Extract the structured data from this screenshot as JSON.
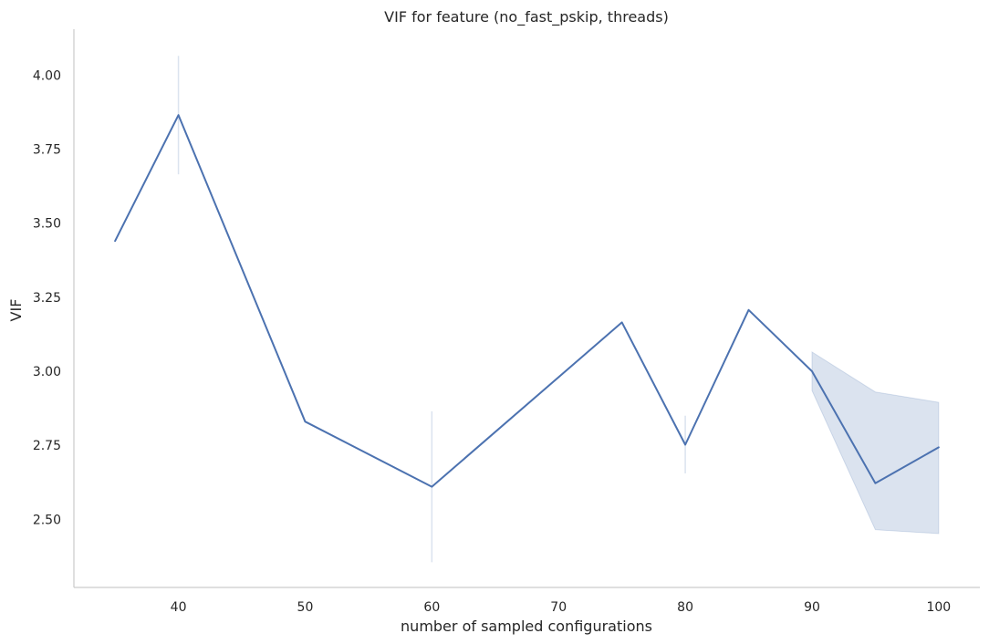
{
  "chart_data": {
    "type": "line",
    "title": "VIF for feature (no_fast_pskip, threads)",
    "xlabel": "number of sampled configurations",
    "ylabel": "VIF",
    "xlim": [
      31.75,
      103.25
    ],
    "ylim": [
      2.27,
      4.155
    ],
    "xticks": [
      40,
      50,
      60,
      70,
      80,
      90,
      100
    ],
    "yticks": [
      2.5,
      2.75,
      3.0,
      3.25,
      3.5,
      3.75,
      4.0
    ],
    "ytick_labels": [
      "2.50",
      "2.75",
      "3.00",
      "3.25",
      "3.50",
      "3.75",
      "4.00"
    ],
    "grid": false,
    "series": [
      {
        "color": "#4c72b0",
        "x": [
          35,
          40,
          50,
          60,
          75,
          80,
          85,
          90,
          95,
          100
        ],
        "y": [
          3.44,
          3.865,
          2.83,
          2.61,
          3.165,
          2.752,
          3.207,
          3.0,
          2.622,
          2.743
        ],
        "ci": [
          {
            "x": 40,
            "low": 3.665,
            "high": 4.065
          },
          {
            "x": 60,
            "low": 2.355,
            "high": 2.865
          },
          {
            "x": 80,
            "low": 2.655,
            "high": 2.85
          },
          {
            "x": 90,
            "low": 2.935,
            "high": 3.065
          },
          {
            "x": 95,
            "low": 2.465,
            "high": 2.93
          },
          {
            "x": 100,
            "low": 2.452,
            "high": 2.895
          }
        ]
      }
    ]
  }
}
